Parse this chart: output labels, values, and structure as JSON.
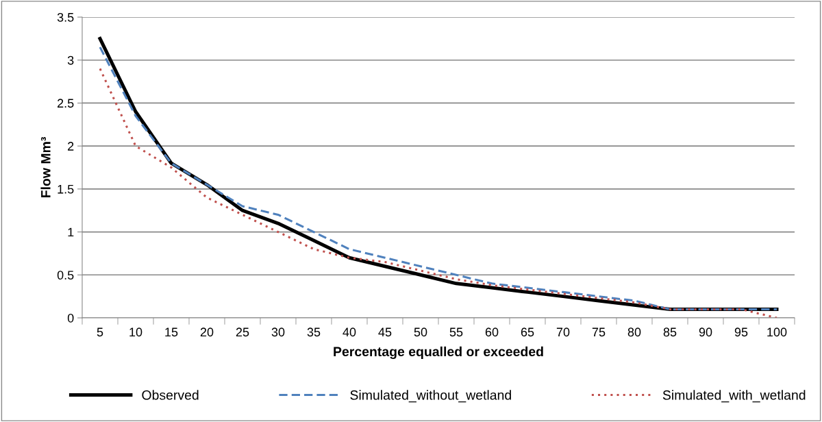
{
  "chart_data": {
    "type": "line",
    "xlabel": "Percentage equalled or exceeded",
    "ylabel": "Flow Mm³",
    "categories": [
      "5",
      "10",
      "15",
      "20",
      "25",
      "30",
      "35",
      "40",
      "45",
      "50",
      "55",
      "60",
      "65",
      "70",
      "75",
      "80",
      "85",
      "90",
      "95",
      "100"
    ],
    "series": [
      {
        "name": "Observed",
        "color": "#000000",
        "line_style": "solid",
        "values": [
          3.25,
          2.4,
          1.8,
          1.55,
          1.25,
          1.1,
          0.9,
          0.7,
          0.6,
          0.5,
          0.4,
          0.35,
          0.3,
          0.25,
          0.2,
          0.15,
          0.1,
          0.1,
          0.1,
          0.1
        ]
      },
      {
        "name": "Simulated_without_wetland",
        "color": "#4f81bd",
        "line_style": "dashed",
        "values": [
          3.15,
          2.35,
          1.8,
          1.55,
          1.3,
          1.2,
          1.0,
          0.8,
          0.7,
          0.6,
          0.5,
          0.4,
          0.35,
          0.3,
          0.25,
          0.2,
          0.1,
          0.1,
          0.1,
          0.1
        ]
      },
      {
        "name": "Simulated_with_wetland",
        "color": "#c0504d",
        "line_style": "dotted",
        "values": [
          2.9,
          2.0,
          1.75,
          1.4,
          1.2,
          1.0,
          0.8,
          0.7,
          0.65,
          0.55,
          0.45,
          0.38,
          0.33,
          0.28,
          0.23,
          0.18,
          0.1,
          0.1,
          0.1,
          0.0
        ]
      }
    ],
    "ylim": [
      0,
      3.5
    ],
    "yticks": [
      0,
      0.5,
      1,
      1.5,
      2,
      2.5,
      3,
      3.5
    ],
    "grid": "y",
    "legend": "bottom",
    "marker": "none"
  }
}
